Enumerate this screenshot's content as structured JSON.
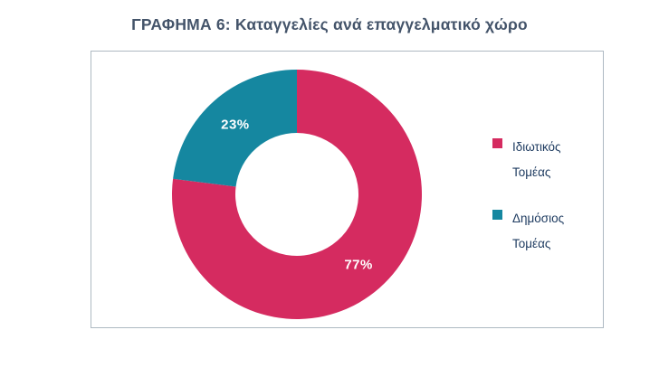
{
  "title": "ΓΡΑΦΗΜΑ 6: Καταγγελίες ανά επαγγελματικό χώρο",
  "chart_data": {
    "type": "pie",
    "donut": true,
    "title": "ΓΡΑΦΗΜΑ 6: Καταγγελίες ανά επαγγελματικό χώρο",
    "categories": [
      "Ιδιωτικός Τομέας",
      "Δημόσιος Τομέας"
    ],
    "values": [
      77,
      23
    ],
    "data_labels": [
      "77%",
      "23%"
    ],
    "colors": [
      "#d52b60",
      "#1587a0"
    ],
    "data_label_color": "#ffffff",
    "start_angle_deg": 0,
    "direction": "clockwise",
    "inner_radius_ratio": 0.49,
    "legend_position": "right",
    "grid": false
  },
  "legend": {
    "items": [
      {
        "line1": "Ιδιωτικός",
        "line2": "Τομέας",
        "color": "#d52b60"
      },
      {
        "line1": "Δημόσιος",
        "line2": "Τομέας",
        "color": "#1587a0"
      }
    ]
  },
  "colors": {
    "title_text": "#44546a",
    "legend_text": "#1f3c61",
    "box_border": "#aeb9c2",
    "background": "#ffffff"
  }
}
